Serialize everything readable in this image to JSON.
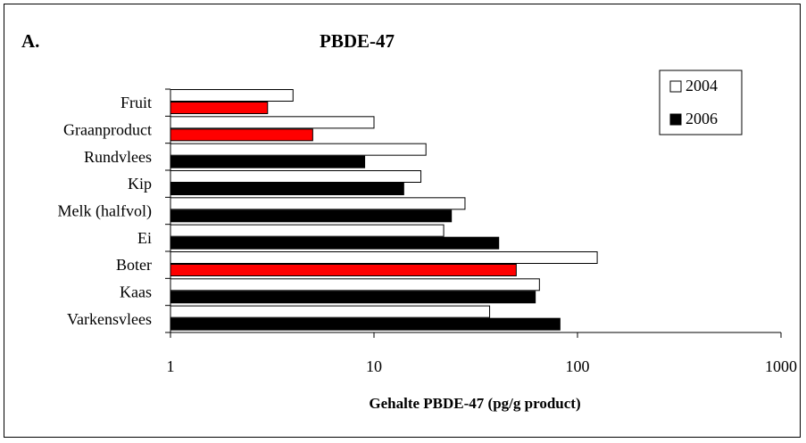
{
  "panel_label": "A.",
  "chart_data": {
    "type": "bar",
    "orientation": "horizontal",
    "title": "PBDE-47",
    "xlabel": "Gehalte PBDE-47 (pg/g product)",
    "ylabel": "",
    "x_scale": "log",
    "xlim": [
      1,
      1000
    ],
    "x_ticks": [
      "1",
      "10",
      "100",
      "1000"
    ],
    "grid": false,
    "legend_position": "top-right",
    "categories": [
      "Fruit",
      "Graanproduct",
      "Rundvlees",
      "Kip",
      "Melk (halfvol)",
      "Ei",
      "Boter",
      "Kaas",
      "Varkensvlees"
    ],
    "series": [
      {
        "name": "2004",
        "color": "#ffffff",
        "values": [
          4,
          10,
          18,
          17,
          28,
          22,
          125,
          65,
          37
        ]
      },
      {
        "name": "2006",
        "color": "#000000",
        "values": [
          3,
          5,
          9,
          14,
          24,
          41,
          50,
          62,
          82
        ]
      }
    ],
    "highlight_color": "#ff0000",
    "highlighted_2006_categories": [
      "Fruit",
      "Graanproduct",
      "Boter"
    ]
  }
}
